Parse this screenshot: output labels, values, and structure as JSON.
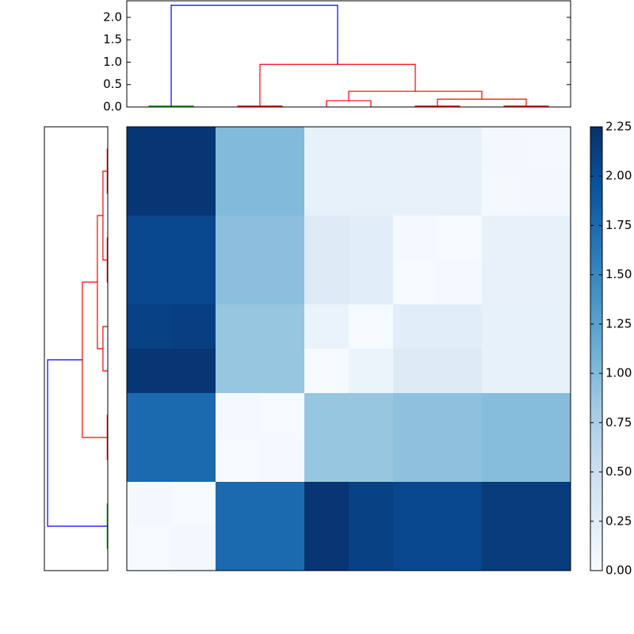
{
  "chart_data": [
    {
      "type": "dendrogram",
      "orientation": "top",
      "xlim": [
        0,
        100
      ],
      "ylim": [
        0,
        2.37
      ],
      "yticks": [
        {
          "value": 0,
          "label": "0.0"
        },
        0.5,
        {
          "value": 1,
          "label": "1.0"
        },
        1.5,
        {
          "value": 2,
          "label": "2.0"
        }
      ],
      "links": [
        {
          "icoord": [
            5,
            5,
            15,
            15
          ],
          "dcoord": [
            0,
            0.02,
            0.02,
            0
          ],
          "color": "#00a000"
        },
        {
          "icoord": [
            25,
            25,
            35,
            35
          ],
          "dcoord": [
            0,
            0.02,
            0.02,
            0
          ],
          "color": "#ff0000"
        },
        {
          "icoord": [
            45,
            45,
            55,
            55
          ],
          "dcoord": [
            0,
            0.14,
            0.14,
            0
          ],
          "color": "#ff0000"
        },
        {
          "icoord": [
            65,
            65,
            75,
            75
          ],
          "dcoord": [
            0,
            0.02,
            0.02,
            0
          ],
          "color": "#ff0000"
        },
        {
          "icoord": [
            85,
            85,
            95,
            95
          ],
          "dcoord": [
            0,
            0.02,
            0.02,
            0
          ],
          "color": "#ff0000"
        },
        {
          "icoord": [
            70,
            70,
            90,
            90
          ],
          "dcoord": [
            0.02,
            0.175,
            0.175,
            0.02
          ],
          "color": "#ff0000"
        },
        {
          "icoord": [
            50,
            50,
            80,
            80
          ],
          "dcoord": [
            0.14,
            0.35,
            0.35,
            0.175
          ],
          "color": "#ff0000"
        },
        {
          "icoord": [
            30,
            30,
            65,
            65
          ],
          "dcoord": [
            0.02,
            0.95,
            0.95,
            0.35
          ],
          "color": "#ff0000"
        },
        {
          "icoord": [
            10,
            10,
            47.5,
            47.5
          ],
          "dcoord": [
            0.02,
            2.27,
            2.27,
            0.95
          ],
          "color": "#0000ff"
        }
      ]
    },
    {
      "type": "dendrogram",
      "orientation": "left",
      "xlim": [
        2.37,
        0
      ],
      "ylim": [
        0,
        100
      ],
      "links": [
        {
          "icoord": [
            5,
            5,
            15,
            15
          ],
          "dcoord": [
            0,
            0.02,
            0.02,
            0
          ],
          "color": "#00a000"
        },
        {
          "icoord": [
            25,
            25,
            35,
            35
          ],
          "dcoord": [
            0,
            0.02,
            0.02,
            0
          ],
          "color": "#ff0000"
        },
        {
          "icoord": [
            45,
            45,
            55,
            55
          ],
          "dcoord": [
            0,
            0.18,
            0.18,
            0
          ],
          "color": "#ff0000"
        },
        {
          "icoord": [
            65,
            65,
            75,
            75
          ],
          "dcoord": [
            0,
            0.02,
            0.02,
            0
          ],
          "color": "#ff0000"
        },
        {
          "icoord": [
            85,
            85,
            95,
            95
          ],
          "dcoord": [
            0,
            0.02,
            0.02,
            0
          ],
          "color": "#ff0000"
        },
        {
          "icoord": [
            70,
            70,
            90,
            90
          ],
          "dcoord": [
            0.02,
            0.18,
            0.18,
            0.02
          ],
          "color": "#ff0000"
        },
        {
          "icoord": [
            50,
            50,
            80,
            80
          ],
          "dcoord": [
            0.18,
            0.39,
            0.39,
            0.18
          ],
          "color": "#ff0000"
        },
        {
          "icoord": [
            30,
            30,
            65,
            65
          ],
          "dcoord": [
            0.02,
            0.95,
            0.95,
            0.39
          ],
          "color": "#ff0000"
        },
        {
          "icoord": [
            10,
            10,
            47.5,
            47.5
          ],
          "dcoord": [
            0.02,
            2.25,
            2.25,
            0.95
          ],
          "color": "#0000ff"
        }
      ]
    },
    {
      "type": "heatmap",
      "colormap": "Blues",
      "zlim": [
        0,
        2.25
      ],
      "cticks": [
        {
          "value": 0,
          "label": "0.00"
        },
        0.25,
        {
          "value": 0.5,
          "label": "0.50"
        },
        0.75,
        {
          "value": 1,
          "label": "1.00"
        },
        1.25,
        {
          "value": 1.5,
          "label": "1.50"
        },
        1.75,
        {
          "value": 2,
          "label": "2.00"
        },
        2.25
      ],
      "z": [
        [
          2.2,
          2.2,
          1.0,
          1.0,
          0.18,
          0.18,
          0.17,
          0.17,
          0.06,
          0.04
        ],
        [
          2.2,
          2.2,
          1.0,
          1.0,
          0.18,
          0.18,
          0.17,
          0.17,
          0.03,
          0.05
        ],
        [
          2.05,
          2.05,
          0.95,
          0.95,
          0.3,
          0.25,
          0.04,
          0.02,
          0.17,
          0.17
        ],
        [
          2.05,
          2.05,
          0.95,
          0.95,
          0.3,
          0.25,
          0.02,
          0.04,
          0.17,
          0.17
        ],
        [
          2.1,
          2.12,
          0.88,
          0.88,
          0.15,
          0.02,
          0.25,
          0.25,
          0.18,
          0.18
        ],
        [
          2.2,
          2.2,
          0.88,
          0.88,
          0.02,
          0.14,
          0.3,
          0.3,
          0.18,
          0.18
        ],
        [
          1.75,
          1.75,
          0.04,
          0.02,
          0.88,
          0.88,
          0.93,
          0.93,
          0.97,
          0.97
        ],
        [
          1.75,
          1.75,
          0.02,
          0.04,
          0.88,
          0.88,
          0.93,
          0.93,
          0.97,
          0.97
        ],
        [
          0.05,
          0.02,
          1.75,
          1.75,
          2.2,
          2.1,
          2.05,
          2.05,
          2.15,
          2.15
        ],
        [
          0.02,
          0.05,
          1.75,
          1.75,
          2.2,
          2.1,
          2.05,
          2.05,
          2.15,
          2.15
        ]
      ]
    }
  ]
}
